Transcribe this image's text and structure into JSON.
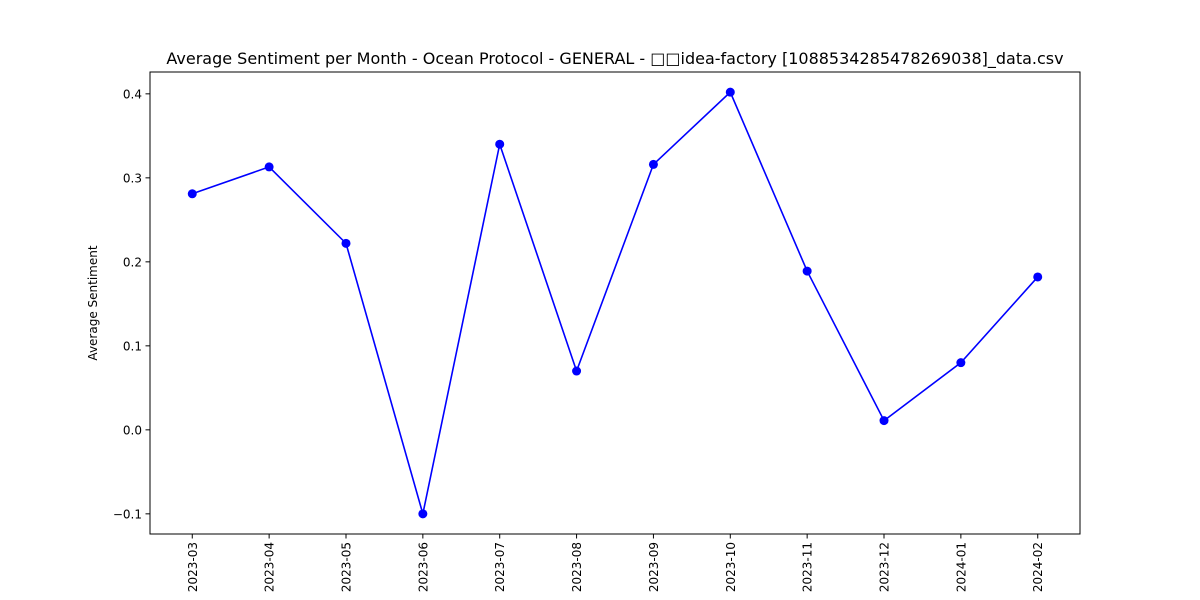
{
  "chart_data": {
    "type": "line",
    "title": "Average Sentiment per Month - Ocean Protocol - GENERAL - □□idea-factory [1088534285478269038]_data.csv",
    "xlabel": "",
    "ylabel": "Average Sentiment",
    "categories": [
      "2023-03",
      "2023-04",
      "2023-05",
      "2023-06",
      "2023-07",
      "2023-08",
      "2023-09",
      "2023-10",
      "2023-11",
      "2023-12",
      "2024-01",
      "2024-02"
    ],
    "series": [
      {
        "values": [
          0.281,
          0.313,
          0.222,
          -0.1,
          0.34,
          0.07,
          0.316,
          0.402,
          0.189,
          0.011,
          0.08,
          0.182
        ],
        "color": "#0000ff",
        "marker": "circle"
      }
    ],
    "ylim": [
      -0.124,
      0.426
    ],
    "yticks": [
      -0.1,
      0.0,
      0.1,
      0.2,
      0.3,
      0.4
    ],
    "ytick_labels": [
      "−0.1",
      "0.0",
      "0.1",
      "0.2",
      "0.3",
      "0.4"
    ],
    "grid": false,
    "legend": "none"
  }
}
